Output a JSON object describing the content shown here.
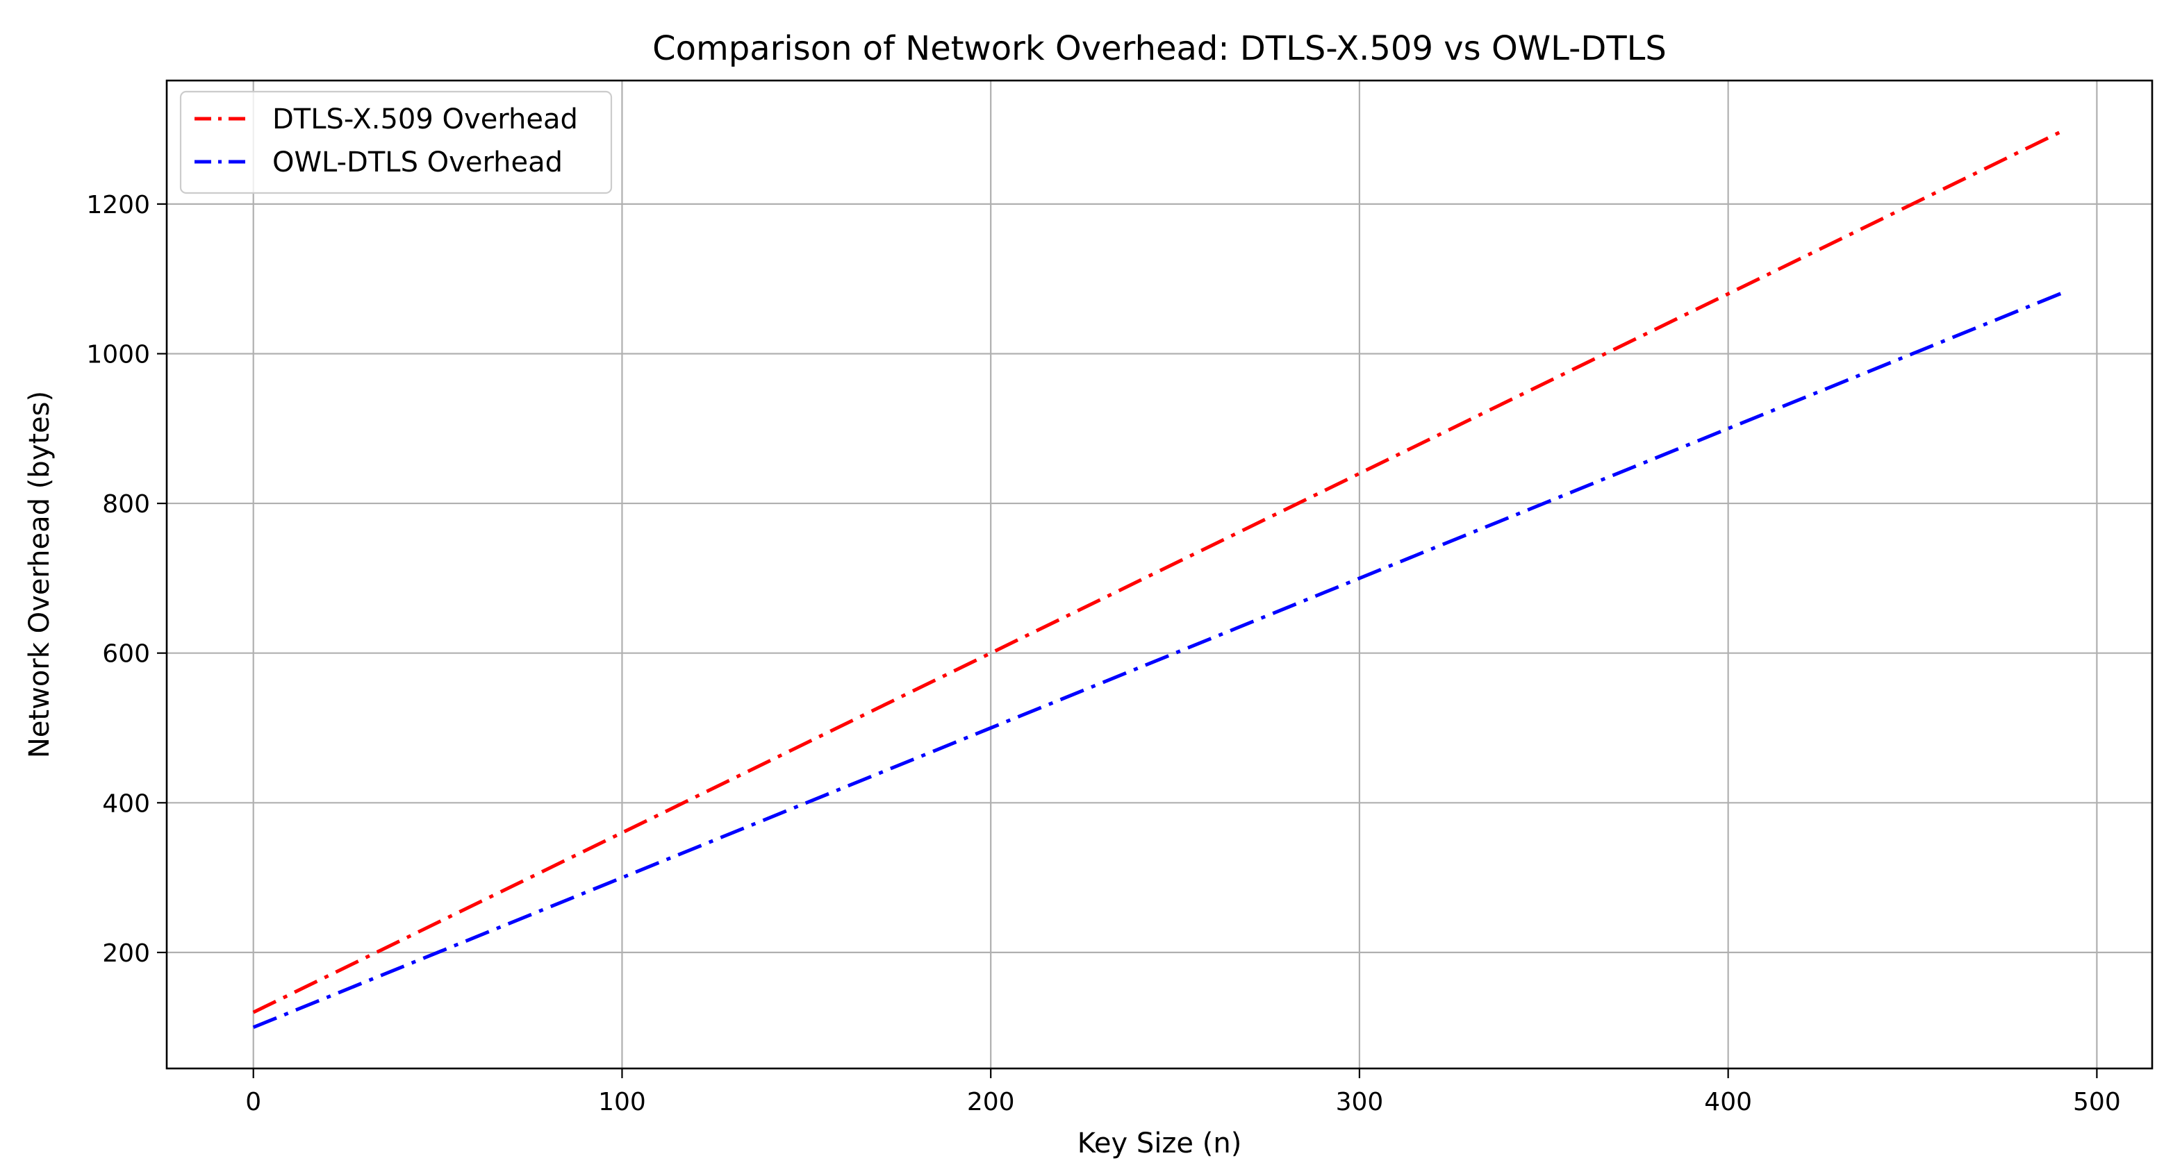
{
  "chart_data": {
    "type": "line",
    "title": "Comparison of Network Overhead: DTLS-X.509 vs OWL-DTLS",
    "xlabel": "Key Size (n)",
    "ylabel": "Network Overhead (bytes)",
    "xlim": [
      -23.5,
      515
    ],
    "ylim": [
      45,
      1365
    ],
    "xticks": [
      0,
      100,
      200,
      300,
      400,
      500
    ],
    "yticks": [
      200,
      400,
      600,
      800,
      1000,
      1200
    ],
    "grid": true,
    "legend_position": "top-left",
    "series": [
      {
        "name": "DTLS-X.509 Overhead",
        "color": "#ff0000",
        "line_style": "dash-dot",
        "x": [
          0,
          100,
          200,
          300,
          400,
          491
        ],
        "y": [
          120,
          360,
          600,
          840,
          1080,
          1298.4
        ]
      },
      {
        "name": "OWL-DTLS Overhead",
        "color": "#0000ff",
        "line_style": "dash-dot",
        "x": [
          0,
          100,
          200,
          300,
          400,
          491
        ],
        "y": [
          100,
          300,
          500,
          700,
          900,
          1082
        ]
      }
    ]
  }
}
